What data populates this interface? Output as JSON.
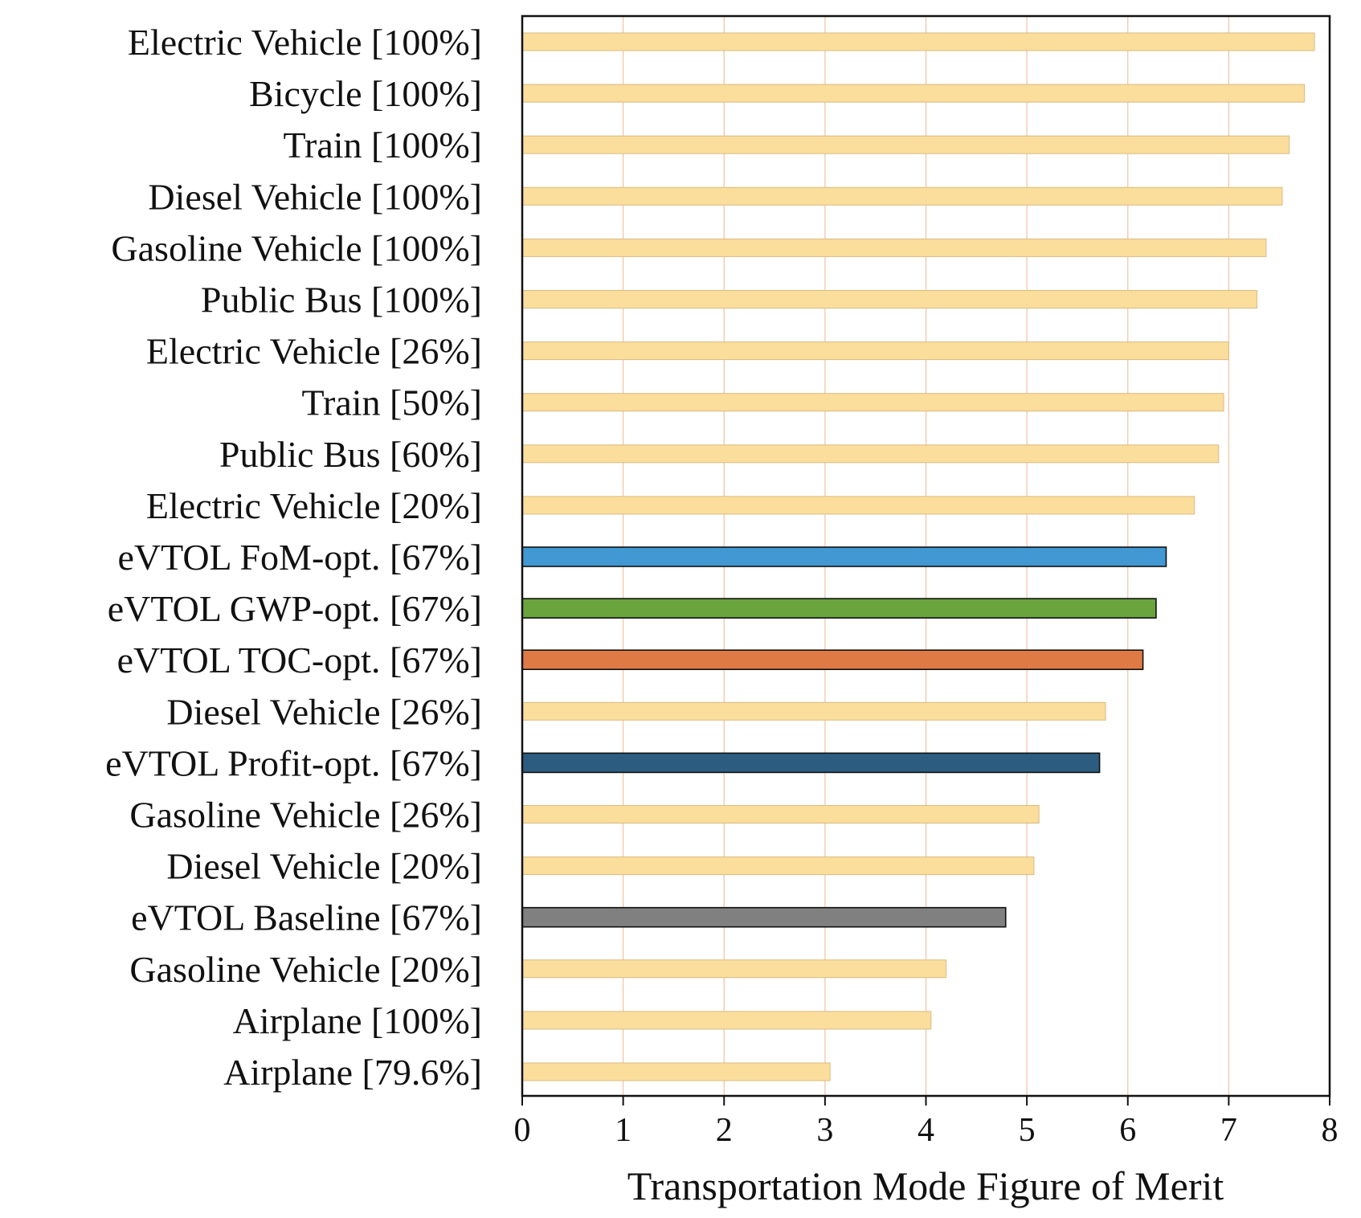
{
  "chart_data": {
    "type": "bar",
    "orientation": "horizontal",
    "title": "",
    "xlabel": "Transportation Mode Figure of Merit",
    "ylabel": "",
    "xlim": [
      0,
      8
    ],
    "xticks": [
      "0",
      "1",
      "2",
      "3",
      "4",
      "5",
      "6",
      "7",
      "8"
    ],
    "grid": "vertical",
    "categories": [
      "Electric Vehicle [100%]",
      "Bicycle [100%]",
      "Train [100%]",
      "Diesel Vehicle [100%]",
      "Gasoline Vehicle [100%]",
      "Public Bus [100%]",
      "Electric Vehicle [26%]",
      "Train [50%]",
      "Public Bus [60%]",
      "Electric Vehicle [20%]",
      "eVTOL FoM-opt. [67%]",
      "eVTOL GWP-opt. [67%]",
      "eVTOL TOC-opt. [67%]",
      "Diesel Vehicle [26%]",
      "eVTOL Profit-opt. [67%]",
      "Gasoline Vehicle [26%]",
      "Diesel Vehicle [20%]",
      "eVTOL Baseline [67%]",
      "Gasoline Vehicle [20%]",
      "Airplane [100%]",
      "Airplane [79.6%]"
    ],
    "values": [
      7.85,
      7.75,
      7.6,
      7.53,
      7.37,
      7.28,
      7.0,
      6.95,
      6.9,
      6.66,
      6.38,
      6.28,
      6.15,
      5.78,
      5.72,
      5.12,
      5.07,
      4.79,
      4.2,
      4.05,
      3.05
    ],
    "colors": [
      "#fbdd9c",
      "#fbdd9c",
      "#fbdd9c",
      "#fbdd9c",
      "#fbdd9c",
      "#fbdd9c",
      "#fbdd9c",
      "#fbdd9c",
      "#fbdd9c",
      "#fbdd9c",
      "#4198d3",
      "#6aa43d",
      "#e07a45",
      "#fbdd9c",
      "#2c5d80",
      "#fbdd9c",
      "#fbdd9c",
      "#808080",
      "#fbdd9c",
      "#fbdd9c",
      "#fbdd9c"
    ],
    "highlighted": [
      false,
      false,
      false,
      false,
      false,
      false,
      false,
      false,
      false,
      false,
      true,
      true,
      true,
      false,
      true,
      false,
      false,
      true,
      false,
      false,
      false
    ]
  }
}
